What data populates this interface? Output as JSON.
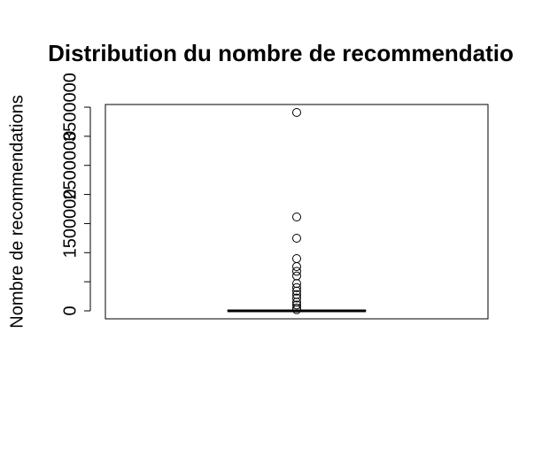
{
  "chart_data": {
    "type": "boxplot",
    "title": "Distribution du nombre de recommendatio",
    "y_label": "Nombre de recommendations",
    "ylim": [
      -137000,
      3546000
    ],
    "yticks": [
      0,
      1500000,
      2500000,
      3500000
    ],
    "minor_yticks": [
      500000,
      1000000,
      2000000,
      3000000
    ],
    "box": {
      "min": 0,
      "q1": 0,
      "median": 0,
      "q3": 5000,
      "max": 12000
    },
    "outliers": [
      3409000,
      1613000,
      1248000,
      898000,
      760000,
      680000,
      600000,
      470000,
      400000,
      340000,
      280000,
      220000,
      150000,
      100000,
      50000,
      20000
    ]
  }
}
